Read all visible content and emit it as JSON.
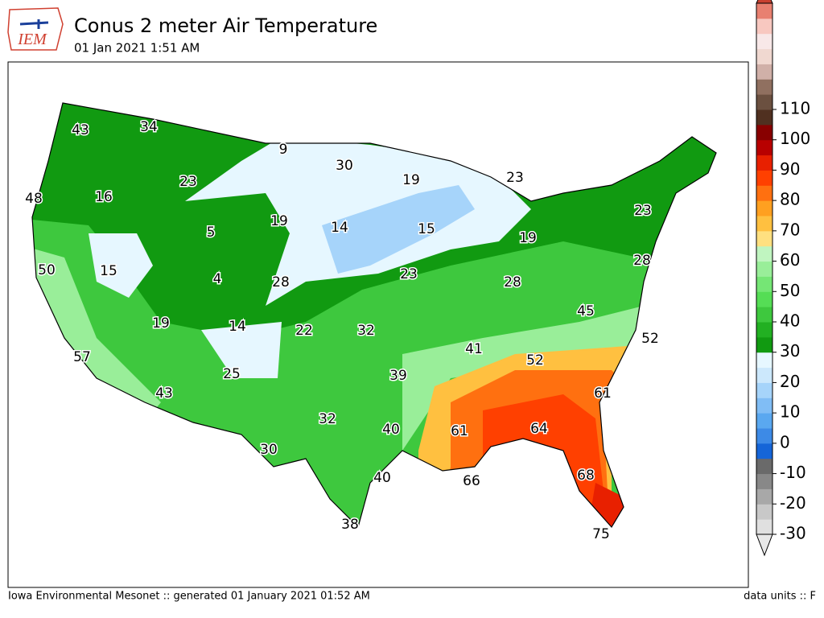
{
  "header": {
    "logo": "IEM",
    "title": "Conus 2 meter Air Temperature",
    "subtitle": "01 Jan 2021 1:51 AM"
  },
  "map_labels": [
    43,
    34,
    9,
    30,
    19,
    23,
    48,
    16,
    23,
    19,
    14,
    15,
    5,
    19,
    15,
    50,
    4,
    28,
    23,
    28,
    23,
    28,
    45,
    19,
    14,
    22,
    32,
    41,
    52,
    52,
    57,
    25,
    39,
    61,
    43,
    32,
    40,
    61,
    64,
    30,
    40,
    66,
    68,
    38,
    75
  ],
  "colorbar": {
    "ticks": [
      -30,
      -20,
      -10,
      0,
      10,
      20,
      30,
      40,
      50,
      60,
      70,
      80,
      90,
      100,
      110
    ]
  },
  "footer": {
    "left": "Iowa Environmental Mesonet :: generated 01 January 2021 01:52 AM",
    "right": "data units :: F"
  }
}
